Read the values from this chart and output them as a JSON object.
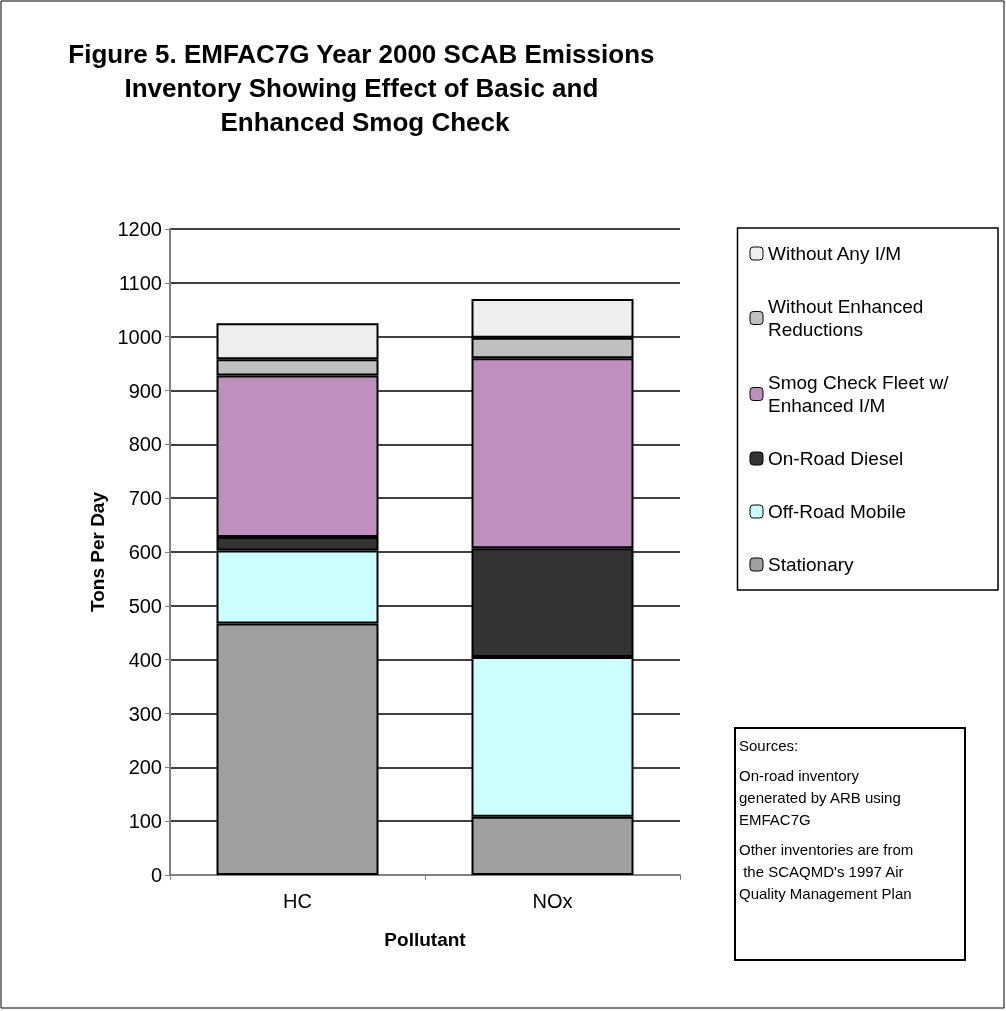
{
  "chart_data": {
    "type": "bar",
    "title": "Figure 5. EMFAC7G Year 2000 SCAB Emissions Inventory Showing Effect of Basic and Enhanced Smog Check",
    "xlabel": "Pollutant",
    "ylabel": "Tons Per Day",
    "categories": [
      "HC",
      "NOx"
    ],
    "stacked": true,
    "series": [
      {
        "name": "Stationary",
        "color": "#a0a0a0",
        "values": [
          467,
          108
        ]
      },
      {
        "name": "Off-Road Mobile",
        "color": "#ccffff",
        "values": [
          136,
          297
        ]
      },
      {
        "name": "On-Road Diesel",
        "color": "#333333",
        "values": [
          25,
          202
        ]
      },
      {
        "name": "Smog Check Fleet w/Enhanced I/M",
        "color": "#bf8fbd",
        "values": [
          300,
          353
        ]
      },
      {
        "name": "Without Enhanced Reductions",
        "color": "#c0c0c0",
        "values": [
          30,
          38
        ]
      },
      {
        "name": "Without Any I/M",
        "color": "#eeeeee",
        "values": [
          67,
          72
        ]
      }
    ],
    "ylim": [
      0,
      1200
    ],
    "yticks": [
      0,
      100,
      200,
      300,
      400,
      500,
      600,
      700,
      800,
      900,
      1000,
      1100,
      1200
    ],
    "grid": "y",
    "legend": "right",
    "annotations": [
      "Sources:",
      "On-road inventory generated by ARB using EMFAC7G",
      "Other inventories are from the SCAQMD's 1997 Air Quality Management Plan"
    ]
  }
}
